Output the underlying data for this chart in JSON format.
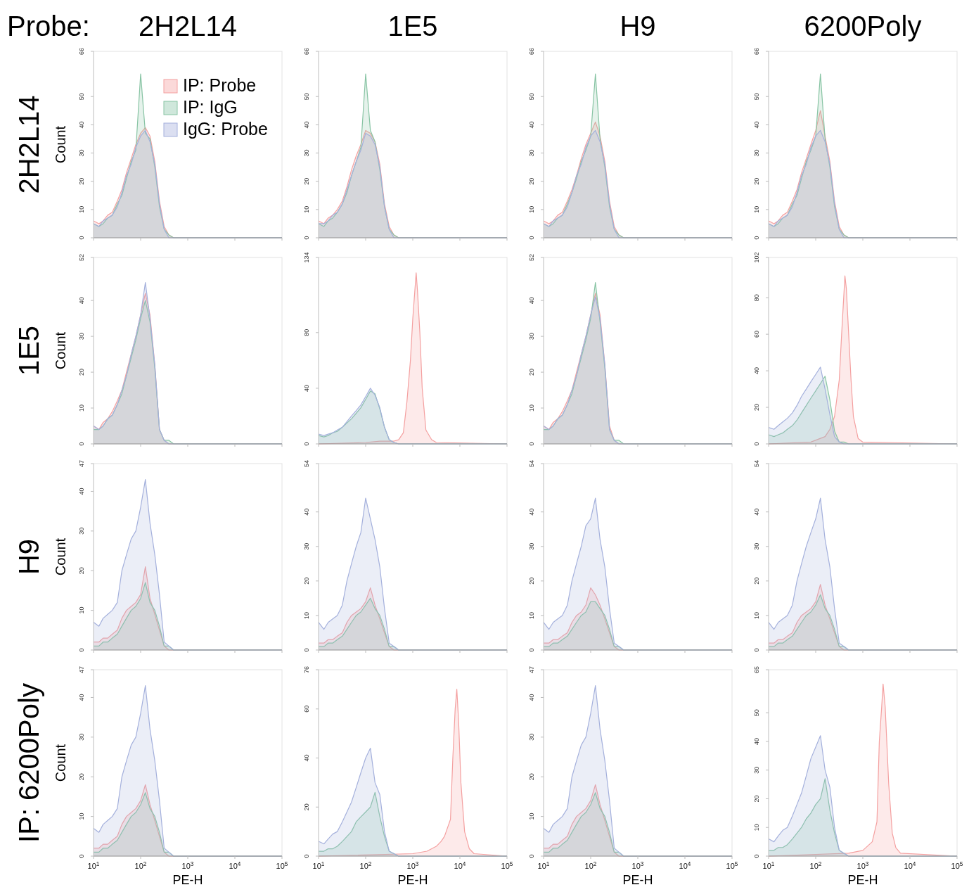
{
  "chart_data": [
    {
      "type": "area",
      "title": "2H2L14",
      "subtitle": "2H2L14",
      "ylabel": "Count",
      "annotations": [
        "Probe:"
      ],
      "legend": "top right",
      "tick_labels": "y",
      "log": "x",
      "xlim": [
        10,
        100000
      ],
      "xticks": [
        {
          "value": 10,
          "label": null
        },
        {
          "value": 100,
          "label": null
        },
        {
          "value": 1000,
          "label": null
        },
        {
          "value": 10000,
          "label": null
        },
        {
          "value": 100000,
          "label": null
        }
      ],
      "ylim": [
        0,
        66
      ],
      "yticks": [
        0,
        10,
        20,
        30,
        40,
        50,
        66
      ],
      "x": [
        10,
        13,
        16,
        20,
        25,
        32,
        40,
        50,
        63,
        79,
        100,
        126,
        158,
        200,
        251,
        316,
        398,
        501,
        100000
      ],
      "series": [
        {
          "name": "IP: Probe",
          "color": "#f4a0a0",
          "values": [
            6,
            5,
            6,
            8,
            9,
            13,
            17,
            23,
            28,
            33,
            37,
            39,
            36,
            27,
            13,
            4,
            1,
            0,
            0
          ]
        },
        {
          "name": "IP: IgG",
          "color": "#88c4a4",
          "values": [
            5,
            4,
            5,
            7,
            8,
            12,
            15,
            21,
            27,
            31,
            58,
            37,
            35,
            25,
            11,
            3,
            1,
            0,
            0
          ]
        },
        {
          "name": "IgG: Probe",
          "color": "#a4b0dc",
          "values": [
            5,
            4,
            6,
            7,
            8,
            11,
            16,
            22,
            26,
            32,
            36,
            38,
            34,
            26,
            12,
            3,
            0,
            0,
            0
          ]
        }
      ]
    },
    {
      "type": "area",
      "title": "1E5",
      "tick_labels": "y",
      "log": "x",
      "xlim": [
        10,
        100000
      ],
      "xticks": [
        {
          "value": 10,
          "label": null
        },
        {
          "value": 100,
          "label": null
        },
        {
          "value": 1000,
          "label": null
        },
        {
          "value": 10000,
          "label": null
        },
        {
          "value": 100000,
          "label": null
        }
      ],
      "ylim": [
        0,
        66
      ],
      "yticks": [
        0,
        10,
        20,
        30,
        40,
        50,
        66
      ],
      "x": [
        10,
        13,
        16,
        20,
        25,
        32,
        40,
        50,
        63,
        79,
        100,
        126,
        158,
        200,
        251,
        316,
        398,
        501,
        100000
      ],
      "series": [
        {
          "color": "#f4a0a0",
          "values": [
            6,
            5,
            7,
            8,
            10,
            13,
            18,
            24,
            29,
            33,
            38,
            37,
            34,
            26,
            12,
            4,
            1,
            0,
            0
          ]
        },
        {
          "color": "#88c4a4",
          "values": [
            5,
            4,
            6,
            7,
            9,
            12,
            16,
            22,
            27,
            32,
            58,
            38,
            34,
            24,
            11,
            3,
            1,
            0,
            0
          ]
        },
        {
          "color": "#a4b0dc",
          "values": [
            5,
            5,
            6,
            8,
            9,
            12,
            17,
            22,
            27,
            31,
            37,
            36,
            33,
            25,
            11,
            3,
            0,
            0,
            0
          ]
        }
      ]
    },
    {
      "type": "area",
      "title": "H9",
      "tick_labels": "y",
      "log": "x",
      "xlim": [
        10,
        100000
      ],
      "xticks": [
        {
          "value": 10,
          "label": null
        },
        {
          "value": 100,
          "label": null
        },
        {
          "value": 1000,
          "label": null
        },
        {
          "value": 10000,
          "label": null
        },
        {
          "value": 100000,
          "label": null
        }
      ],
      "ylim": [
        0,
        66
      ],
      "yticks": [
        0,
        10,
        20,
        30,
        40,
        50,
        66
      ],
      "x": [
        10,
        13,
        16,
        20,
        25,
        32,
        40,
        50,
        63,
        79,
        100,
        126,
        158,
        200,
        251,
        316,
        398,
        501,
        100000
      ],
      "series": [
        {
          "color": "#f4a0a0",
          "values": [
            6,
            5,
            6,
            8,
            9,
            13,
            17,
            22,
            28,
            33,
            37,
            41,
            36,
            27,
            13,
            4,
            1,
            0,
            0
          ]
        },
        {
          "color": "#88c4a4",
          "values": [
            5,
            4,
            5,
            7,
            8,
            12,
            16,
            21,
            27,
            31,
            36,
            58,
            35,
            25,
            11,
            3,
            1,
            0,
            0
          ]
        },
        {
          "color": "#a4b0dc",
          "values": [
            5,
            4,
            6,
            7,
            8,
            11,
            16,
            22,
            26,
            32,
            36,
            38,
            34,
            26,
            12,
            3,
            0,
            0,
            0
          ]
        }
      ]
    },
    {
      "type": "area",
      "title": "6200Poly",
      "tick_labels": "y",
      "log": "x",
      "xlim": [
        10,
        100000
      ],
      "xticks": [
        {
          "value": 10,
          "label": null
        },
        {
          "value": 100,
          "label": null
        },
        {
          "value": 1000,
          "label": null
        },
        {
          "value": 10000,
          "label": null
        },
        {
          "value": 100000,
          "label": null
        }
      ],
      "ylim": [
        0,
        66
      ],
      "yticks": [
        0,
        10,
        20,
        30,
        40,
        50,
        66
      ],
      "x": [
        10,
        13,
        16,
        20,
        25,
        32,
        40,
        50,
        63,
        79,
        100,
        126,
        158,
        200,
        251,
        316,
        398,
        501,
        100000
      ],
      "series": [
        {
          "color": "#f4a0a0",
          "values": [
            6,
            5,
            6,
            8,
            9,
            13,
            17,
            23,
            28,
            33,
            38,
            45,
            36,
            27,
            13,
            4,
            1,
            0,
            0
          ]
        },
        {
          "color": "#88c4a4",
          "values": [
            5,
            4,
            5,
            7,
            8,
            12,
            15,
            21,
            27,
            31,
            36,
            58,
            35,
            25,
            11,
            3,
            1,
            0,
            0
          ]
        },
        {
          "color": "#a4b0dc",
          "values": [
            5,
            4,
            6,
            7,
            8,
            11,
            16,
            22,
            26,
            32,
            36,
            38,
            34,
            26,
            12,
            3,
            0,
            0,
            0
          ]
        }
      ]
    },
    {
      "type": "area",
      "subtitle": "1E5",
      "ylabel": "Count",
      "tick_labels": "y",
      "log": "x",
      "xlim": [
        10,
        100000
      ],
      "xticks": [
        {
          "value": 10,
          "label": null
        },
        {
          "value": 100,
          "label": null
        },
        {
          "value": 1000,
          "label": null
        },
        {
          "value": 10000,
          "label": null
        },
        {
          "value": 100000,
          "label": null
        }
      ],
      "ylim": [
        0,
        52
      ],
      "yticks": [
        0,
        10,
        20,
        30,
        40,
        52
      ],
      "x": [
        10,
        13,
        16,
        20,
        25,
        32,
        40,
        50,
        63,
        79,
        100,
        126,
        158,
        200,
        251,
        316,
        398,
        501,
        100000
      ],
      "series": [
        {
          "color": "#f4a0a0",
          "values": [
            5,
            4,
            6,
            7,
            9,
            12,
            15,
            20,
            25,
            30,
            36,
            42,
            36,
            22,
            4,
            1,
            0,
            0,
            0
          ]
        },
        {
          "color": "#88c4a4",
          "values": [
            4,
            4,
            5,
            7,
            8,
            11,
            14,
            19,
            24,
            29,
            35,
            40,
            34,
            21,
            4,
            1,
            1,
            0,
            0
          ]
        },
        {
          "color": "#a4b0dc",
          "values": [
            5,
            4,
            5,
            7,
            8,
            11,
            15,
            19,
            25,
            30,
            36,
            45,
            35,
            22,
            4,
            1,
            0,
            0,
            0
          ]
        }
      ]
    },
    {
      "type": "area",
      "tick_labels": "y",
      "log": "x",
      "xlim": [
        10,
        100000
      ],
      "xticks": [
        {
          "value": 10,
          "label": null
        },
        {
          "value": 100,
          "label": null
        },
        {
          "value": 1000,
          "label": null
        },
        {
          "value": 10000,
          "label": null
        },
        {
          "value": 100000,
          "label": null
        }
      ],
      "ylim": [
        0,
        134
      ],
      "yticks": [
        0,
        40,
        80,
        134
      ],
      "x": [
        10,
        13,
        16,
        20,
        25,
        32,
        40,
        50,
        63,
        79,
        100,
        126,
        158,
        200,
        251,
        316,
        398,
        501,
        100000
      ],
      "series": [
        {
          "color": "#f4a0a0",
          "x": [
            10,
            100,
            200,
            400,
            501,
            631,
            750,
            891,
            1000,
            1180,
            1259,
            1413,
            1585,
            1900,
            2512,
            3162,
            100000
          ],
          "values": [
            0,
            1,
            2,
            2,
            3,
            8,
            30,
            60,
            90,
            123,
            110,
            80,
            40,
            10,
            3,
            1,
            0
          ]
        },
        {
          "color": "#88c4a4",
          "values": [
            6,
            5,
            6,
            8,
            9,
            12,
            15,
            18,
            22,
            26,
            32,
            38,
            36,
            25,
            12,
            3,
            1,
            0,
            0
          ]
        },
        {
          "color": "#a4b0dc",
          "values": [
            7,
            6,
            7,
            8,
            10,
            12,
            16,
            20,
            24,
            28,
            34,
            40,
            35,
            26,
            12,
            3,
            1,
            0,
            0
          ]
        }
      ]
    },
    {
      "type": "area",
      "tick_labels": "y",
      "log": "x",
      "xlim": [
        10,
        100000
      ],
      "xticks": [
        {
          "value": 10,
          "label": null
        },
        {
          "value": 100,
          "label": null
        },
        {
          "value": 1000,
          "label": null
        },
        {
          "value": 10000,
          "label": null
        },
        {
          "value": 100000,
          "label": null
        }
      ],
      "ylim": [
        0,
        52
      ],
      "yticks": [
        0,
        10,
        20,
        30,
        40,
        52
      ],
      "x": [
        10,
        13,
        16,
        20,
        25,
        32,
        40,
        50,
        63,
        79,
        100,
        126,
        158,
        200,
        251,
        316,
        398,
        501,
        100000
      ],
      "series": [
        {
          "color": "#f4a0a0",
          "values": [
            5,
            4,
            6,
            7,
            9,
            12,
            15,
            20,
            25,
            30,
            36,
            42,
            36,
            22,
            5,
            1,
            0,
            0,
            0
          ]
        },
        {
          "color": "#88c4a4",
          "values": [
            4,
            4,
            5,
            7,
            8,
            11,
            14,
            19,
            24,
            29,
            35,
            45,
            34,
            21,
            4,
            1,
            1,
            0,
            0
          ]
        },
        {
          "color": "#a4b0dc",
          "values": [
            5,
            4,
            5,
            7,
            8,
            11,
            15,
            19,
            25,
            30,
            36,
            41,
            35,
            22,
            4,
            1,
            0,
            0,
            0
          ]
        }
      ]
    },
    {
      "type": "area",
      "tick_labels": "y",
      "log": "x",
      "xlim": [
        10,
        100000
      ],
      "xticks": [
        {
          "value": 10,
          "label": null
        },
        {
          "value": 100,
          "label": null
        },
        {
          "value": 1000,
          "label": null
        },
        {
          "value": 10000,
          "label": null
        },
        {
          "value": 100000,
          "label": null
        }
      ],
      "ylim": [
        0,
        102
      ],
      "yticks": [
        0,
        20,
        40,
        60,
        80,
        102
      ],
      "x": [
        10,
        13,
        16,
        20,
        25,
        32,
        40,
        50,
        63,
        79,
        100,
        126,
        158,
        200,
        251,
        316,
        398,
        501,
        100000
      ],
      "series": [
        {
          "color": "#f4a0a0",
          "x": [
            10,
            79,
            158,
            200,
            251,
            316,
            355,
            417,
            447,
            501,
            562,
            631,
            794,
            1000,
            100000
          ],
          "values": [
            0,
            1,
            4,
            8,
            15,
            35,
            60,
            92,
            85,
            60,
            35,
            15,
            3,
            1,
            0
          ]
        },
        {
          "color": "#88c4a4",
          "values": [
            5,
            4,
            5,
            6,
            8,
            10,
            13,
            17,
            21,
            25,
            29,
            33,
            37,
            24,
            7,
            1,
            1,
            0,
            0
          ]
        },
        {
          "color": "#a4b0dc",
          "values": [
            9,
            8,
            10,
            12,
            14,
            17,
            21,
            26,
            30,
            34,
            38,
            42,
            30,
            16,
            4,
            1,
            0,
            0,
            0
          ]
        }
      ]
    },
    {
      "type": "area",
      "subtitle": "H9",
      "ylabel": "Count",
      "tick_labels": "y",
      "log": "x",
      "xlim": [
        10,
        100000
      ],
      "xticks": [
        {
          "value": 10,
          "label": null
        },
        {
          "value": 100,
          "label": null
        },
        {
          "value": 1000,
          "label": null
        },
        {
          "value": 10000,
          "label": null
        },
        {
          "value": 100000,
          "label": null
        }
      ],
      "ylim": [
        0,
        47
      ],
      "yticks": [
        0,
        10,
        20,
        30,
        40,
        47
      ],
      "x": [
        10,
        13,
        16,
        20,
        25,
        32,
        40,
        50,
        63,
        79,
        100,
        126,
        158,
        200,
        251,
        316,
        398,
        501,
        100000
      ],
      "series": [
        {
          "color": "#f4a0a0",
          "values": [
            2,
            2,
            3,
            3,
            4,
            5,
            8,
            10,
            11,
            12,
            14,
            21,
            13,
            9,
            5,
            1,
            0,
            0,
            0
          ]
        },
        {
          "color": "#88c4a4",
          "values": [
            1,
            1,
            2,
            2,
            3,
            4,
            6,
            8,
            10,
            11,
            13,
            17,
            12,
            10,
            6,
            1,
            1,
            0,
            0
          ]
        },
        {
          "color": "#a4b0dc",
          "values": [
            7,
            6,
            8,
            9,
            10,
            12,
            20,
            24,
            28,
            30,
            36,
            43,
            32,
            24,
            14,
            2,
            1,
            0,
            0
          ]
        }
      ]
    },
    {
      "type": "area",
      "tick_labels": "y",
      "log": "x",
      "xlim": [
        10,
        100000
      ],
      "xticks": [
        {
          "value": 10,
          "label": null
        },
        {
          "value": 100,
          "label": null
        },
        {
          "value": 1000,
          "label": null
        },
        {
          "value": 10000,
          "label": null
        },
        {
          "value": 100000,
          "label": null
        }
      ],
      "ylim": [
        0,
        54
      ],
      "yticks": [
        0,
        10,
        20,
        30,
        40,
        54
      ],
      "x": [
        10,
        13,
        16,
        20,
        25,
        32,
        40,
        50,
        63,
        79,
        100,
        126,
        158,
        200,
        251,
        316,
        398,
        501,
        100000
      ],
      "series": [
        {
          "color": "#f4a0a0",
          "values": [
            2,
            2,
            3,
            3,
            4,
            5,
            8,
            10,
            11,
            12,
            14,
            18,
            13,
            9,
            5,
            1,
            0,
            0,
            0
          ]
        },
        {
          "color": "#88c4a4",
          "values": [
            1,
            1,
            2,
            2,
            3,
            4,
            6,
            8,
            10,
            11,
            13,
            15,
            12,
            10,
            6,
            1,
            1,
            0,
            0
          ]
        },
        {
          "color": "#a4b0dc",
          "values": [
            8,
            6,
            8,
            9,
            10,
            13,
            20,
            25,
            30,
            34,
            44,
            38,
            32,
            24,
            12,
            2,
            1,
            0,
            0
          ]
        }
      ]
    },
    {
      "type": "area",
      "tick_labels": "y",
      "log": "x",
      "xlim": [
        10,
        100000
      ],
      "xticks": [
        {
          "value": 10,
          "label": null
        },
        {
          "value": 100,
          "label": null
        },
        {
          "value": 1000,
          "label": null
        },
        {
          "value": 10000,
          "label": null
        },
        {
          "value": 100000,
          "label": null
        }
      ],
      "ylim": [
        0,
        54
      ],
      "yticks": [
        0,
        10,
        20,
        30,
        40,
        54
      ],
      "x": [
        10,
        13,
        16,
        20,
        25,
        32,
        40,
        50,
        63,
        79,
        100,
        126,
        158,
        200,
        251,
        316,
        398,
        501,
        100000
      ],
      "series": [
        {
          "color": "#f4a0a0",
          "values": [
            2,
            2,
            3,
            3,
            4,
            5,
            8,
            10,
            11,
            13,
            18,
            16,
            13,
            9,
            5,
            1,
            0,
            0,
            0
          ]
        },
        {
          "color": "#88c4a4",
          "values": [
            1,
            1,
            2,
            2,
            3,
            4,
            6,
            8,
            10,
            11,
            14,
            14,
            12,
            10,
            6,
            1,
            1,
            0,
            0
          ]
        },
        {
          "color": "#a4b0dc",
          "values": [
            8,
            6,
            8,
            9,
            10,
            13,
            20,
            25,
            30,
            36,
            38,
            44,
            32,
            24,
            12,
            2,
            1,
            0,
            0
          ]
        }
      ]
    },
    {
      "type": "area",
      "tick_labels": "y",
      "log": "x",
      "xlim": [
        10,
        100000
      ],
      "xticks": [
        {
          "value": 10,
          "label": null
        },
        {
          "value": 100,
          "label": null
        },
        {
          "value": 1000,
          "label": null
        },
        {
          "value": 10000,
          "label": null
        },
        {
          "value": 100000,
          "label": null
        }
      ],
      "ylim": [
        0,
        54
      ],
      "yticks": [
        0,
        10,
        20,
        30,
        40,
        54
      ],
      "x": [
        10,
        13,
        16,
        20,
        25,
        32,
        40,
        50,
        63,
        79,
        100,
        126,
        158,
        200,
        251,
        316,
        398,
        501,
        100000
      ],
      "series": [
        {
          "color": "#f4a0a0",
          "values": [
            2,
            2,
            3,
            3,
            4,
            5,
            8,
            10,
            11,
            12,
            14,
            19,
            13,
            9,
            5,
            1,
            0,
            0,
            0
          ]
        },
        {
          "color": "#88c4a4",
          "values": [
            1,
            1,
            2,
            2,
            3,
            4,
            6,
            8,
            10,
            11,
            13,
            16,
            12,
            10,
            6,
            1,
            1,
            0,
            0
          ]
        },
        {
          "color": "#a4b0dc",
          "values": [
            8,
            6,
            8,
            9,
            10,
            13,
            20,
            25,
            30,
            34,
            38,
            44,
            32,
            24,
            12,
            2,
            1,
            0,
            0
          ]
        }
      ]
    },
    {
      "type": "area",
      "subtitle": "IP: 6200Poly",
      "ylabel": "Count",
      "xlabel": "PE-H",
      "log": "x",
      "xlim": [
        10,
        100000
      ],
      "xticks": [
        {
          "value": 10,
          "label": "10$^{1}$"
        },
        {
          "value": 100,
          "label": "10$^{2}$"
        },
        {
          "value": 1000,
          "label": "10$^{3}$"
        },
        {
          "value": 10000,
          "label": "10$^{4}$"
        },
        {
          "value": 100000,
          "label": "10$^{5}$"
        }
      ],
      "ylim": [
        0,
        47
      ],
      "yticks": [
        0,
        10,
        20,
        30,
        40,
        47
      ],
      "x": [
        10,
        13,
        16,
        20,
        25,
        32,
        40,
        50,
        63,
        79,
        100,
        126,
        158,
        200,
        251,
        316,
        398,
        501,
        100000
      ],
      "series": [
        {
          "color": "#f4a0a0",
          "values": [
            2,
            2,
            3,
            3,
            4,
            5,
            8,
            10,
            11,
            12,
            14,
            18,
            13,
            9,
            5,
            1,
            0,
            0,
            0
          ]
        },
        {
          "color": "#88c4a4",
          "values": [
            1,
            1,
            2,
            2,
            3,
            4,
            6,
            8,
            10,
            11,
            13,
            16,
            12,
            10,
            6,
            1,
            1,
            0,
            0
          ]
        },
        {
          "color": "#a4b0dc",
          "values": [
            7,
            6,
            8,
            9,
            10,
            12,
            20,
            24,
            28,
            30,
            36,
            43,
            32,
            24,
            14,
            2,
            1,
            0,
            0
          ]
        }
      ]
    },
    {
      "type": "area",
      "xlabel": "PE-H",
      "log": "x",
      "xlim": [
        10,
        100000
      ],
      "xticks": [
        {
          "value": 10,
          "label": "10$^{1}$"
        },
        {
          "value": 100,
          "label": "10$^{2}$"
        },
        {
          "value": 1000,
          "label": "10$^{3}$"
        },
        {
          "value": 10000,
          "label": "10$^{4}$"
        },
        {
          "value": 100000,
          "label": "10$^{5}$"
        }
      ],
      "ylim": [
        0,
        76
      ],
      "yticks": [
        0,
        20,
        40,
        60,
        76
      ],
      "x": [
        10,
        13,
        16,
        20,
        25,
        32,
        40,
        50,
        63,
        79,
        100,
        126,
        158,
        200,
        251,
        316,
        398,
        501,
        100000
      ],
      "series": [
        {
          "color": "#f4a0a0",
          "x": [
            10,
            1000,
            2000,
            3162,
            3981,
            4700,
            6310,
            7079,
            7943,
            8600,
            9400,
            10500,
            12589,
            15849,
            20000,
            100000
          ],
          "values": [
            0,
            1,
            2,
            4,
            6,
            8,
            15,
            40,
            60,
            68,
            55,
            30,
            10,
            3,
            1,
            0
          ]
        },
        {
          "color": "#88c4a4",
          "values": [
            2,
            2,
            3,
            3,
            4,
            6,
            8,
            10,
            14,
            16,
            18,
            20,
            26,
            16,
            8,
            2,
            1,
            0,
            0
          ]
        },
        {
          "color": "#a4b0dc",
          "values": [
            6,
            5,
            7,
            9,
            10,
            14,
            18,
            22,
            28,
            34,
            40,
            44,
            30,
            25,
            10,
            2,
            1,
            0,
            0
          ]
        }
      ]
    },
    {
      "type": "area",
      "xlabel": "PE-H",
      "log": "x",
      "xlim": [
        10,
        100000
      ],
      "xticks": [
        {
          "value": 10,
          "label": "10$^{1}$"
        },
        {
          "value": 100,
          "label": "10$^{2}$"
        },
        {
          "value": 1000,
          "label": "10$^{3}$"
        },
        {
          "value": 10000,
          "label": "10$^{4}$"
        },
        {
          "value": 100000,
          "label": "10$^{5}$"
        }
      ],
      "ylim": [
        0,
        47
      ],
      "yticks": [
        0,
        10,
        20,
        30,
        40,
        47
      ],
      "x": [
        10,
        13,
        16,
        20,
        25,
        32,
        40,
        50,
        63,
        79,
        100,
        126,
        158,
        200,
        251,
        316,
        398,
        501,
        100000
      ],
      "series": [
        {
          "color": "#f4a0a0",
          "values": [
            2,
            2,
            3,
            3,
            4,
            5,
            8,
            10,
            11,
            12,
            14,
            18,
            13,
            9,
            5,
            1,
            0,
            0,
            0
          ]
        },
        {
          "color": "#88c4a4",
          "values": [
            1,
            1,
            2,
            2,
            3,
            4,
            6,
            8,
            10,
            11,
            13,
            16,
            12,
            10,
            6,
            1,
            1,
            0,
            0
          ]
        },
        {
          "color": "#a4b0dc",
          "values": [
            7,
            6,
            8,
            9,
            10,
            12,
            20,
            24,
            28,
            30,
            36,
            43,
            32,
            24,
            14,
            2,
            1,
            0,
            0
          ]
        }
      ]
    },
    {
      "type": "area",
      "xlabel": "PE-H",
      "log": "x",
      "xlim": [
        10,
        100000
      ],
      "xticks": [
        {
          "value": 10,
          "label": "10$^{1}$"
        },
        {
          "value": 100,
          "label": "10$^{2}$"
        },
        {
          "value": 1000,
          "label": "10$^{3}$"
        },
        {
          "value": 10000,
          "label": "10$^{4}$"
        },
        {
          "value": 100000,
          "label": "10$^{5}$"
        }
      ],
      "ylim": [
        0,
        65
      ],
      "yticks": [
        0,
        10,
        20,
        30,
        40,
        50,
        65
      ],
      "x": [
        10,
        13,
        16,
        20,
        25,
        32,
        40,
        50,
        63,
        79,
        100,
        126,
        158,
        200,
        251,
        316,
        398,
        501,
        100000
      ],
      "series": [
        {
          "color": "#f4a0a0",
          "x": [
            10,
            500,
            1000,
            1585,
            1995,
            2239,
            2512,
            2692,
            2985,
            3548,
            4217,
            5012,
            6310,
            100000
          ],
          "values": [
            0,
            1,
            2,
            5,
            12,
            40,
            52,
            60,
            52,
            25,
            8,
            3,
            1,
            0
          ]
        },
        {
          "color": "#88c4a4",
          "values": [
            2,
            2,
            3,
            3,
            4,
            6,
            8,
            10,
            13,
            15,
            18,
            20,
            27,
            16,
            8,
            2,
            1,
            0,
            0
          ]
        },
        {
          "color": "#a4b0dc",
          "values": [
            6,
            5,
            7,
            9,
            10,
            14,
            18,
            22,
            28,
            34,
            38,
            42,
            30,
            24,
            10,
            2,
            1,
            0,
            0
          ]
        }
      ]
    }
  ]
}
